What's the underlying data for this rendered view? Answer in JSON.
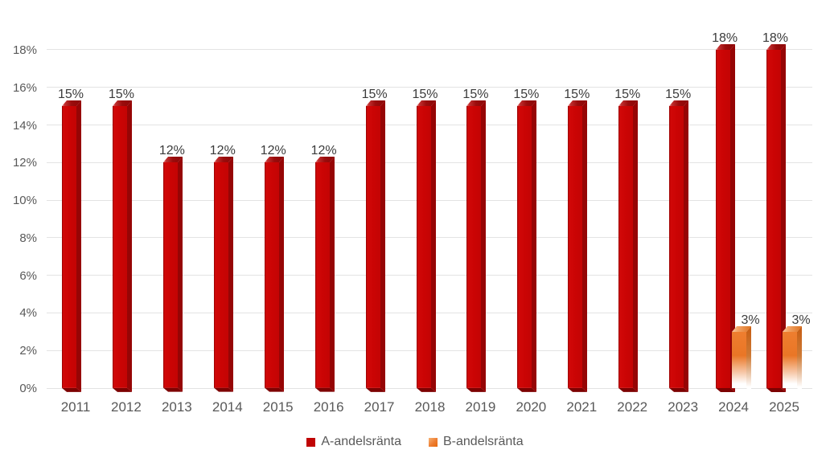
{
  "chart_data": {
    "type": "bar",
    "title": "",
    "xlabel": "",
    "ylabel": "",
    "categories": [
      "2011",
      "2012",
      "2013",
      "2014",
      "2015",
      "2016",
      "2017",
      "2018",
      "2019",
      "2020",
      "2021",
      "2022",
      "2023",
      "2024",
      "2025"
    ],
    "series": [
      {
        "name": "A-andelsränta",
        "color": "#C00000",
        "values": [
          15,
          15,
          12,
          12,
          12,
          12,
          15,
          15,
          15,
          15,
          15,
          15,
          15,
          18,
          18
        ],
        "labels": [
          "15%",
          "15%",
          "12%",
          "12%",
          "12%",
          "12%",
          "15%",
          "15%",
          "15%",
          "15%",
          "15%",
          "15%",
          "15%",
          "18%",
          "18%"
        ]
      },
      {
        "name": "B-andelsränta",
        "color": "#ED7D31",
        "values": [
          null,
          null,
          null,
          null,
          null,
          null,
          null,
          null,
          null,
          null,
          null,
          null,
          null,
          3,
          3
        ],
        "labels": [
          null,
          null,
          null,
          null,
          null,
          null,
          null,
          null,
          null,
          null,
          null,
          null,
          null,
          "3%",
          "3%"
        ]
      }
    ],
    "y_ticks": [
      "0%",
      "2%",
      "4%",
      "6%",
      "8%",
      "10%",
      "12%",
      "14%",
      "16%",
      "18%"
    ],
    "ylim": [
      0,
      18
    ],
    "grid": "horizontal",
    "data_labels": true,
    "legend_position": "bottom",
    "style_3d": true,
    "colors": {
      "axis_text": "#595959",
      "data_label_text": "#3B3B3B",
      "gridline": "#E3E3E3",
      "bar_a_face": "#C90404",
      "bar_b_face": "#ED7D31",
      "background": "#FFFFFF"
    }
  }
}
